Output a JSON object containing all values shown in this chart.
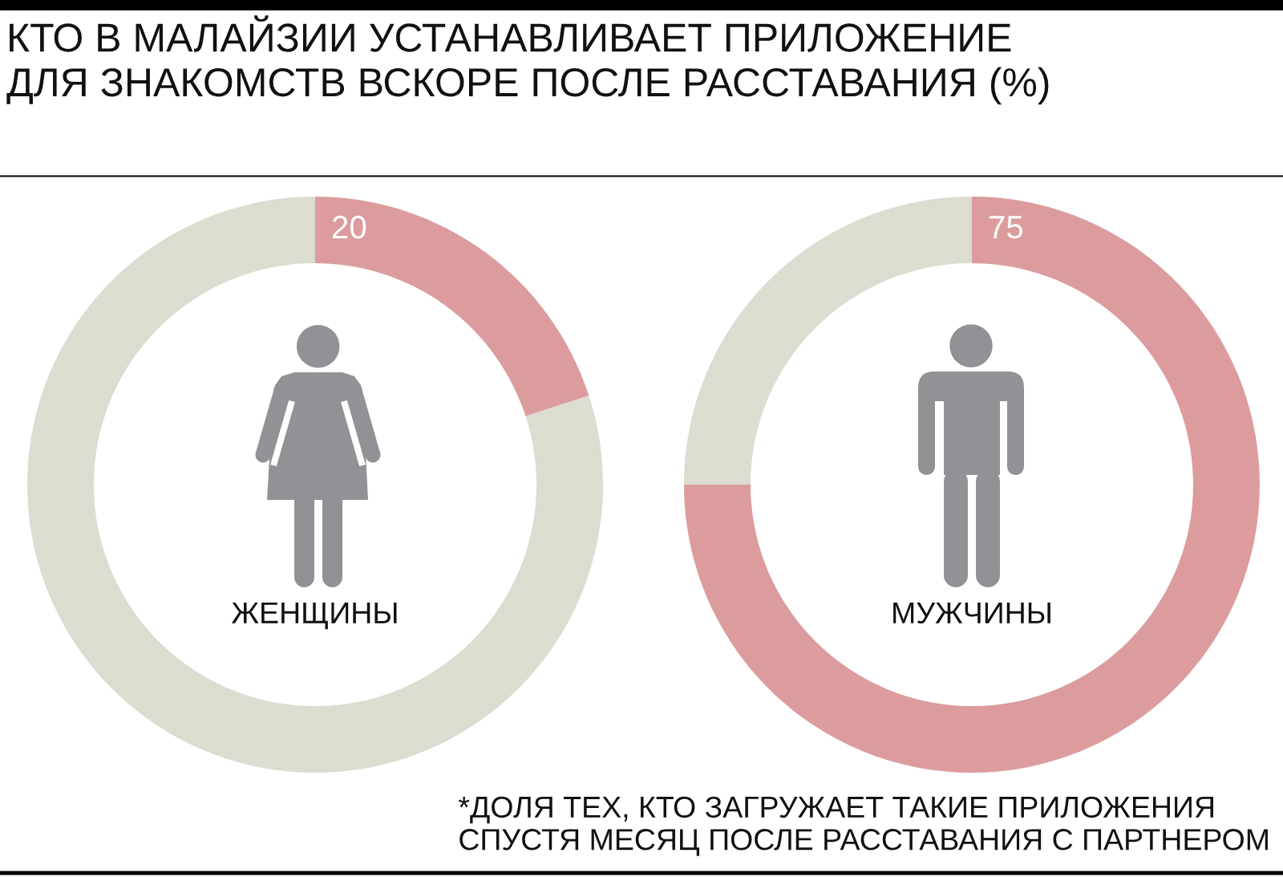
{
  "chart_data": [
    {
      "type": "donut",
      "title": "КТО В МАЛАЙЗИИ УСТАНАВЛИВАЕТ ПРИЛОЖЕНИЕ\nДЛЯ ЗНАКОМСТВ ВСКОРЕ ПОСЛЕ РАССТАВАНИЯ (%)",
      "xlabel": "ЖЕНЩИНЫ",
      "categories": [
        null,
        null
      ],
      "values": [
        20,
        80
      ],
      "colors": [
        "#dc9c9e",
        "#dcdcd1"
      ],
      "value_labels": [
        "20",
        null
      ]
    },
    {
      "type": "donut",
      "xlabel": "МУЖЧИНЫ",
      "categories": [
        null,
        null
      ],
      "values": [
        75,
        25
      ],
      "colors": [
        "#dc9c9e",
        "#dcdcd1"
      ],
      "value_labels": [
        "75",
        null
      ],
      "annotations": [
        "*ДОЛЯ ТЕХ, КТО ЗАГРУЖАЕТ ТАКИЕ ПРИЛОЖЕНИЯ\nСПУСТЯ МЕСЯЦ ПОСЛЕ РАССТАВАНИЯ С ПАРТНЕРОМ"
      ]
    }
  ]
}
